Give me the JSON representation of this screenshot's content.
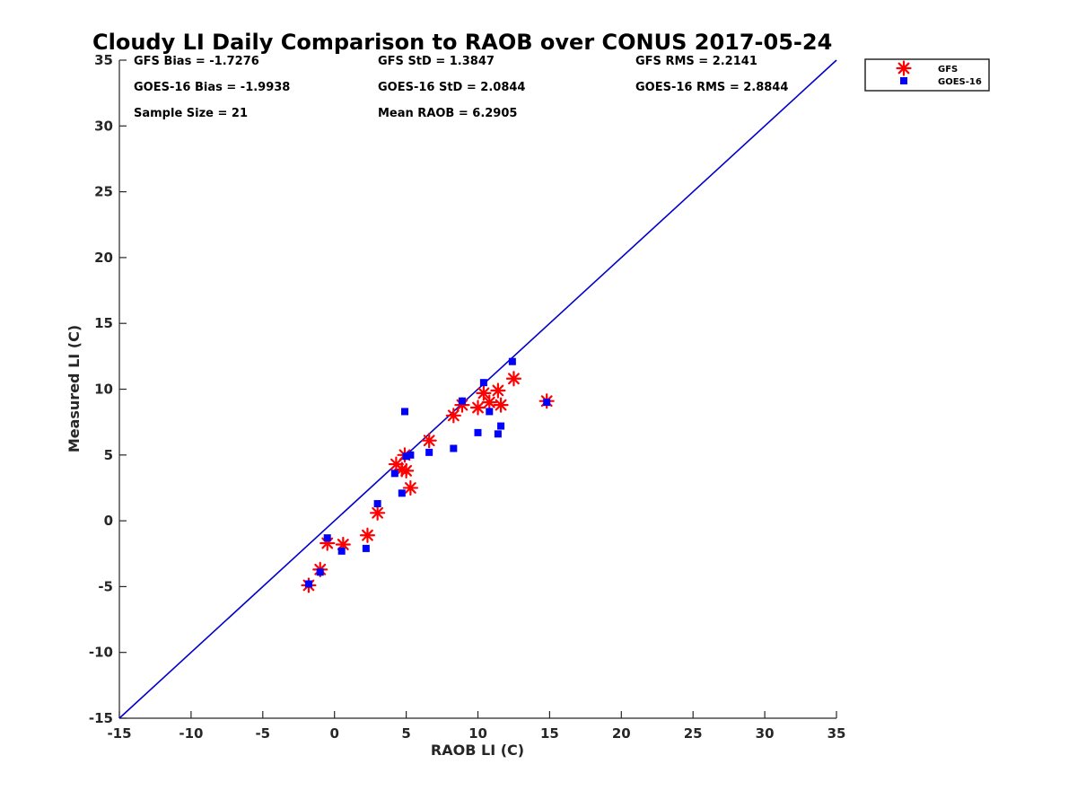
{
  "chart_data": {
    "type": "scatter",
    "title": "Cloudy LI Daily Comparison to RAOB over CONUS 2017-05-24",
    "xlabel": "RAOB LI (C)",
    "ylabel": "Measured LI (C)",
    "xlim": [
      -15,
      35
    ],
    "ylim": [
      -15,
      35
    ],
    "xticks": [
      "-15",
      "-10",
      "-5",
      "0",
      "5",
      "10",
      "15",
      "20",
      "25",
      "30",
      "35"
    ],
    "yticks": [
      "-15",
      "-10",
      "-5",
      "0",
      "5",
      "10",
      "15",
      "20",
      "25",
      "30",
      "35"
    ],
    "grid": false,
    "legend_position": "top-right outside plot",
    "reference_line": {
      "type": "1:1",
      "color": "#0000CC"
    },
    "stats": [
      [
        "GFS Bias = -1.7276",
        "GFS StD = 1.3847",
        "GFS RMS = 2.2141"
      ],
      [
        "GOES-16 Bias = -1.9938",
        "GOES-16 StD = 2.0844",
        "GOES-16 RMS = 2.8844"
      ],
      [
        "Sample Size = 21",
        "Mean RAOB = 6.2905",
        ""
      ]
    ],
    "series": [
      {
        "name": "GFS",
        "marker": "asterisk",
        "color": "#FF0000",
        "points": [
          [
            -1.8,
            -4.9
          ],
          [
            -1.0,
            -3.7
          ],
          [
            -0.5,
            -1.7
          ],
          [
            0.6,
            -1.8
          ],
          [
            2.3,
            -1.1
          ],
          [
            3.0,
            0.6
          ],
          [
            4.3,
            4.3
          ],
          [
            4.7,
            3.9
          ],
          [
            4.9,
            5.0
          ],
          [
            5.0,
            3.8
          ],
          [
            5.3,
            2.5
          ],
          [
            6.6,
            6.1
          ],
          [
            8.3,
            8.0
          ],
          [
            8.9,
            8.8
          ],
          [
            10.0,
            8.6
          ],
          [
            10.4,
            9.7
          ],
          [
            10.8,
            9.0
          ],
          [
            11.4,
            9.9
          ],
          [
            11.6,
            8.8
          ],
          [
            12.5,
            10.8
          ],
          [
            14.8,
            9.1
          ]
        ]
      },
      {
        "name": "GOES-16",
        "marker": "square",
        "color": "#0000FF",
        "points": [
          [
            -1.8,
            -4.8
          ],
          [
            -1.0,
            -3.9
          ],
          [
            -0.5,
            -1.3
          ],
          [
            0.5,
            -2.3
          ],
          [
            2.2,
            -2.1
          ],
          [
            3.0,
            1.3
          ],
          [
            4.2,
            3.6
          ],
          [
            4.7,
            2.1
          ],
          [
            4.9,
            8.3
          ],
          [
            5.0,
            4.9
          ],
          [
            5.3,
            5.0
          ],
          [
            6.6,
            5.2
          ],
          [
            8.3,
            5.5
          ],
          [
            8.9,
            9.1
          ],
          [
            10.0,
            6.7
          ],
          [
            10.4,
            10.5
          ],
          [
            10.8,
            8.3
          ],
          [
            11.4,
            6.6
          ],
          [
            11.6,
            7.2
          ],
          [
            12.4,
            12.1
          ],
          [
            14.8,
            9.0
          ]
        ]
      }
    ]
  }
}
